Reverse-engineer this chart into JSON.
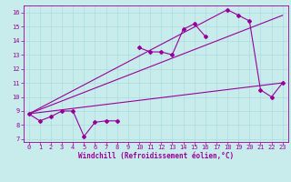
{
  "title": "",
  "xlabel": "Windchill (Refroidissement éolien,°C)",
  "ylabel": "",
  "background_color": "#c8ecec",
  "line_color": "#990099",
  "xlim": [
    -0.5,
    23.5
  ],
  "ylim": [
    6.8,
    16.5
  ],
  "xticks": [
    0,
    1,
    2,
    3,
    4,
    5,
    6,
    7,
    8,
    9,
    10,
    11,
    12,
    13,
    14,
    15,
    16,
    17,
    18,
    19,
    20,
    21,
    22,
    23
  ],
  "yticks": [
    7,
    8,
    9,
    10,
    11,
    12,
    13,
    14,
    15,
    16
  ],
  "grid_color": "#aadddd",
  "series1_x": [
    0,
    1,
    2,
    3,
    4,
    5,
    6,
    7,
    8,
    10,
    11,
    12,
    13,
    14,
    15,
    16,
    18,
    19,
    20,
    21,
    22,
    23
  ],
  "series1_y": [
    8.8,
    8.3,
    8.6,
    9.0,
    9.0,
    7.2,
    8.2,
    8.3,
    8.3,
    13.5,
    13.2,
    13.2,
    13.0,
    14.8,
    15.2,
    14.3,
    16.2,
    15.8,
    15.4,
    10.5,
    10.0,
    11.0
  ],
  "series2_x": [
    0,
    23
  ],
  "series2_y": [
    8.8,
    11.0
  ],
  "series3_x": [
    0,
    18
  ],
  "series3_y": [
    8.8,
    16.2
  ],
  "series4_x": [
    0,
    23
  ],
  "series4_y": [
    8.8,
    15.8
  ],
  "grid_linewidth": 0.5,
  "line_linewidth": 0.8,
  "marker_size": 2.0,
  "tick_fontsize": 5.0,
  "xlabel_fontsize": 5.5
}
